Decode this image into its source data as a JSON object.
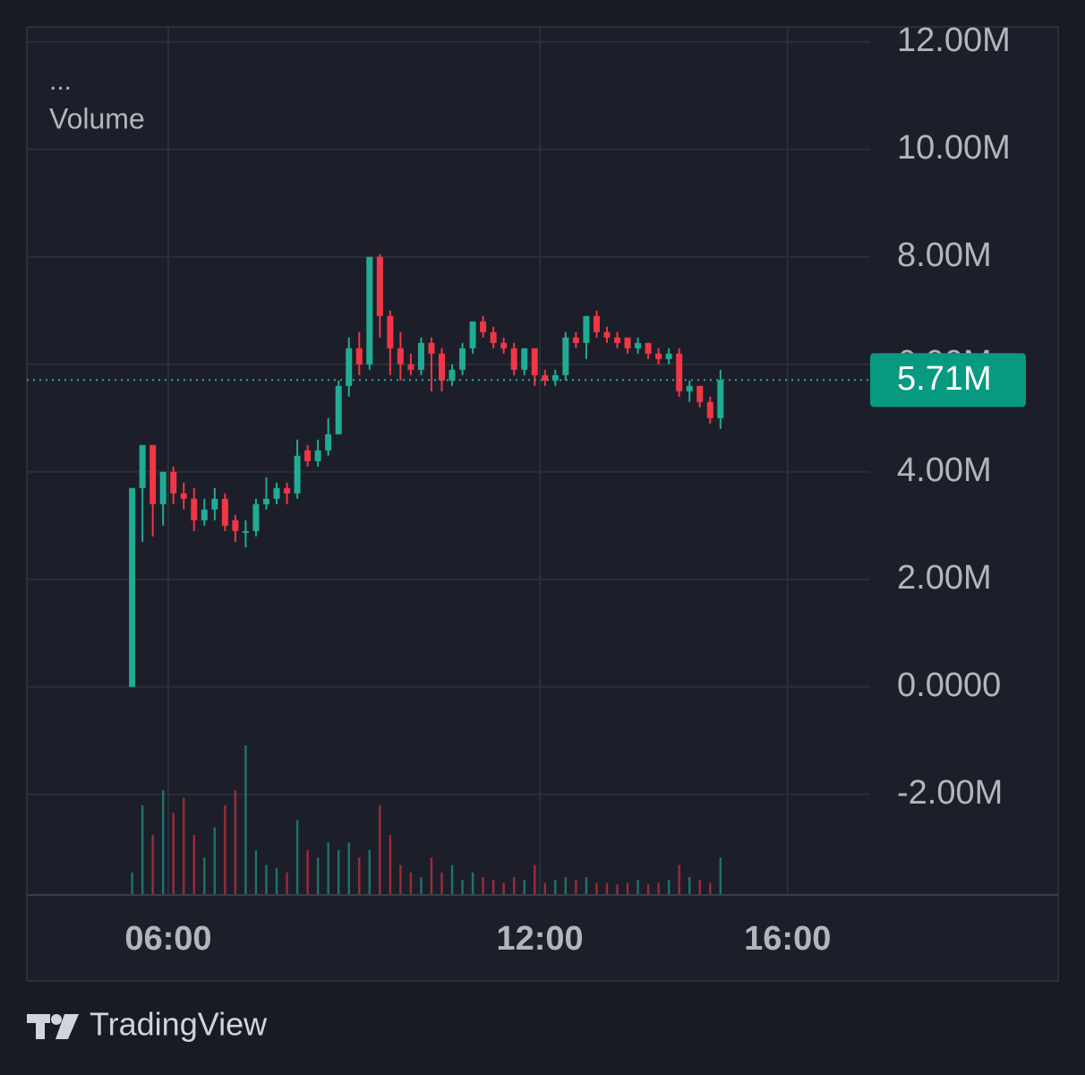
{
  "chart_data": {
    "type": "candlestick",
    "indicator_menu": "...",
    "indicator_name": "Volume",
    "brand": "TradingView",
    "up_color": "#22ab94",
    "down_color": "#f23645",
    "grid": true,
    "xlim": [
      223,
      1040
    ],
    "xticks": [
      {
        "value": 360,
        "label": "06:00"
      },
      {
        "value": 720,
        "label": "12:00"
      },
      {
        "value": 960,
        "label": "16:00"
      }
    ],
    "ylim": [
      -3.87,
      12.28
    ],
    "yticks": [
      {
        "value": -2,
        "label": "-2.00M"
      },
      {
        "value": 0,
        "label": "0.0000"
      },
      {
        "value": 2,
        "label": "2.00M"
      },
      {
        "value": 4,
        "label": "4.00M"
      },
      {
        "value": 6,
        "label": "6.00M"
      },
      {
        "value": 8,
        "label": "8.00M"
      },
      {
        "value": 10,
        "label": "10.00M"
      },
      {
        "value": 12,
        "label": "12.00M"
      }
    ],
    "last_price": {
      "value": 5.71,
      "label": "5.71M"
    },
    "x": [
      325,
      335,
      345,
      355,
      365,
      375,
      385,
      395,
      405,
      415,
      425,
      435,
      445,
      455,
      465,
      475,
      485,
      495,
      505,
      515,
      525,
      535,
      545,
      555,
      565,
      575,
      585,
      595,
      605,
      615,
      625,
      635,
      645,
      655,
      665,
      675,
      685,
      695,
      705,
      715,
      725,
      735,
      745,
      755,
      765,
      775,
      785,
      795,
      805,
      815,
      825,
      835,
      845,
      855,
      865,
      875,
      885,
      895
    ],
    "open": [
      0,
      3.7,
      4.5,
      3.4,
      4.0,
      3.6,
      3.5,
      3.1,
      3.3,
      3.5,
      3.1,
      2.9,
      2.9,
      3.4,
      3.5,
      3.7,
      3.6,
      4.4,
      4.2,
      4.4,
      4.7,
      5.6,
      6.3,
      6.0,
      8.0,
      6.9,
      6.3,
      6.0,
      5.9,
      6.4,
      6.2,
      5.7,
      5.9,
      6.3,
      6.8,
      6.6,
      6.4,
      6.3,
      5.9,
      6.3,
      5.8,
      5.7,
      5.8,
      6.5,
      6.4,
      6.9,
      6.6,
      6.5,
      6.5,
      6.3,
      6.4,
      6.2,
      6.1,
      6.2,
      5.5,
      5.6,
      5.3,
      5.0
    ],
    "high": [
      3.7,
      4.5,
      4.5,
      4.0,
      4.1,
      3.8,
      3.7,
      3.5,
      3.7,
      3.6,
      3.2,
      3.1,
      3.5,
      3.9,
      3.8,
      3.8,
      4.6,
      4.5,
      4.6,
      5.0,
      5.7,
      6.5,
      6.6,
      8.0,
      8.05,
      7.0,
      6.6,
      6.2,
      6.5,
      6.5,
      6.3,
      6.0,
      6.4,
      6.8,
      6.9,
      6.7,
      6.5,
      6.4,
      6.3,
      6.3,
      5.9,
      5.9,
      6.6,
      6.6,
      6.9,
      7.0,
      6.7,
      6.6,
      6.5,
      6.5,
      6.4,
      6.3,
      6.3,
      6.3,
      5.7,
      5.6,
      5.4,
      5.9
    ],
    "low": [
      0,
      2.7,
      2.8,
      3.0,
      3.4,
      3.3,
      2.9,
      3.0,
      3.1,
      2.9,
      2.7,
      2.6,
      2.8,
      3.3,
      3.4,
      3.4,
      3.5,
      4.1,
      4.1,
      4.3,
      4.7,
      5.4,
      5.8,
      5.9,
      6.5,
      5.8,
      5.7,
      5.8,
      5.8,
      5.5,
      5.5,
      5.6,
      5.8,
      6.2,
      6.5,
      6.3,
      6.2,
      5.8,
      5.8,
      5.6,
      5.6,
      5.6,
      5.7,
      6.3,
      6.1,
      6.5,
      6.4,
      6.3,
      6.2,
      6.2,
      6.1,
      6.0,
      6.0,
      5.4,
      5.3,
      5.2,
      4.9,
      4.8
    ],
    "close": [
      3.7,
      4.5,
      3.4,
      4.0,
      3.6,
      3.5,
      3.1,
      3.3,
      3.5,
      3.0,
      2.9,
      2.9,
      3.4,
      3.5,
      3.7,
      3.6,
      4.3,
      4.2,
      4.4,
      4.7,
      5.6,
      6.3,
      6.0,
      8.0,
      6.9,
      6.3,
      6.0,
      5.9,
      6.4,
      6.2,
      5.7,
      5.9,
      6.3,
      6.8,
      6.6,
      6.4,
      6.3,
      5.9,
      6.3,
      5.8,
      5.7,
      5.8,
      6.5,
      6.4,
      6.9,
      6.6,
      6.5,
      6.4,
      6.3,
      6.4,
      6.2,
      6.1,
      6.2,
      5.5,
      5.6,
      5.3,
      5.0,
      5.71
    ],
    "volume": [
      15,
      60,
      40,
      70,
      55,
      65,
      40,
      25,
      45,
      60,
      70,
      100,
      30,
      20,
      18,
      15,
      50,
      30,
      25,
      35,
      30,
      35,
      25,
      30,
      60,
      40,
      20,
      15,
      12,
      25,
      15,
      20,
      10,
      15,
      12,
      10,
      8,
      12,
      10,
      20,
      8,
      10,
      12,
      10,
      12,
      8,
      8,
      7,
      8,
      10,
      7,
      8,
      10,
      20,
      12,
      10,
      8,
      25
    ]
  }
}
